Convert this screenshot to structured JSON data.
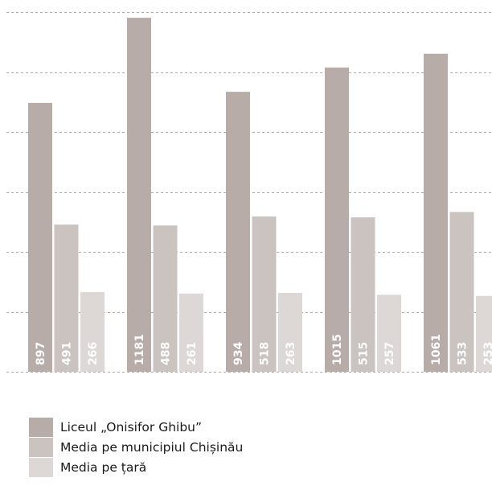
{
  "chart_data": {
    "type": "bar",
    "categories": [
      "",
      "",
      "",
      "",
      ""
    ],
    "series": [
      {
        "name": "Liceul „Onisifor Ghibu”",
        "color": "#b7aca8",
        "values": [
          897,
          1181,
          934,
          1015,
          1061
        ]
      },
      {
        "name": "Media pe municipiul Chișinău",
        "color": "#cbc3c0",
        "values": [
          491,
          488,
          518,
          515,
          533
        ]
      },
      {
        "name": "Media pe țară",
        "color": "#ddd7d5",
        "values": [
          266,
          261,
          263,
          257,
          253
        ]
      }
    ],
    "ylim": [
      0,
      1200
    ],
    "grid": true,
    "legend_position": "bottom-left",
    "value_labels": "inside-bar-vertical"
  }
}
